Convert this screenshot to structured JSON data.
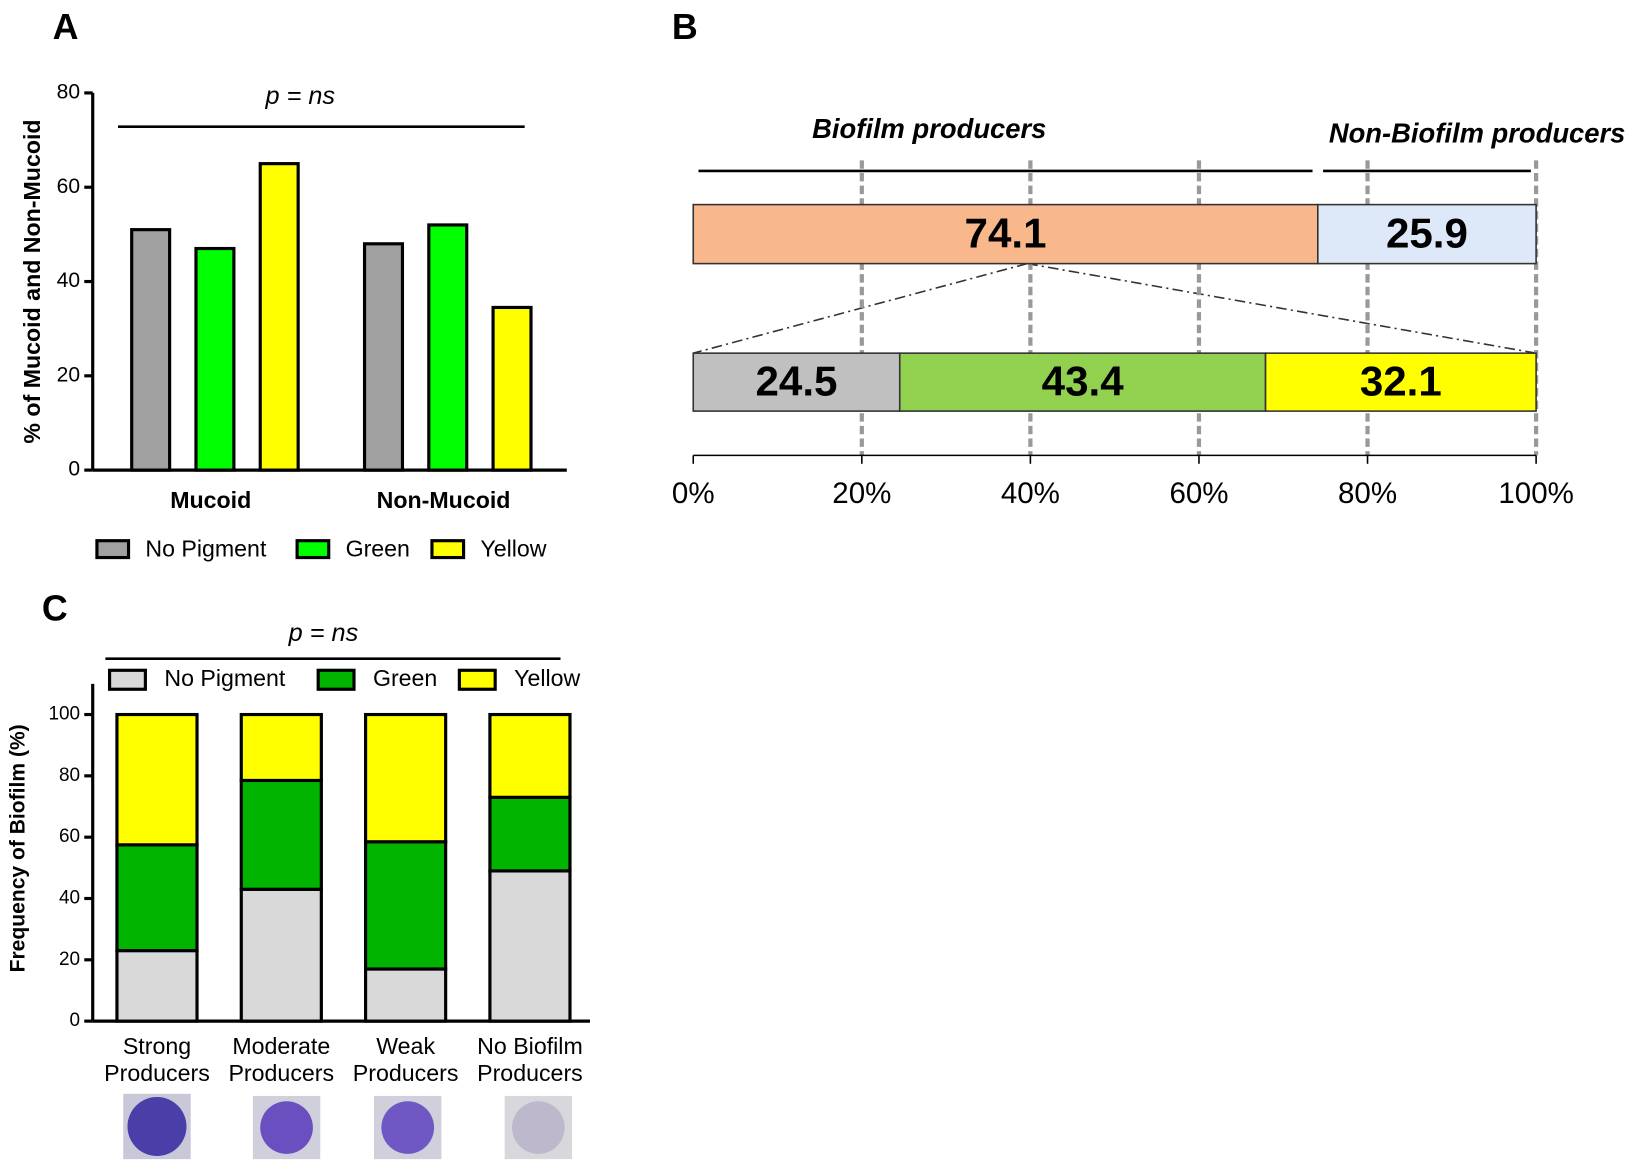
{
  "chart_data": [
    {
      "type": "grouped_bar",
      "panel": "A",
      "annotation": "p = ns",
      "y_label": "% of Mucoid and Non-Mucoid",
      "categories": [
        "Mucoid",
        "Non-Mucoid"
      ],
      "series": [
        {
          "name": "No Pigment",
          "color": "#a0a0a0",
          "values": [
            51,
            48
          ]
        },
        {
          "name": "Green",
          "color": "#00ff00",
          "values": [
            47,
            52
          ]
        },
        {
          "name": "Yellow",
          "color": "#ffff00",
          "values": [
            65,
            34.5
          ]
        }
      ],
      "ylim": [
        0,
        80
      ],
      "yticks": [
        0,
        20,
        40,
        60,
        80
      ]
    },
    {
      "type": "stacked_bar_h",
      "panel": "B",
      "groups": [
        "Biofilm producers",
        "Non-Biofilm producers"
      ],
      "bars": [
        {
          "values": [
            74.1,
            25.9
          ],
          "colors": [
            "#f8b88b",
            "#dde8f8"
          ]
        },
        {
          "values": [
            24.5,
            43.4,
            32.1
          ],
          "colors": [
            "#c0c0c0",
            "#92d050",
            "#ffff00"
          ]
        }
      ],
      "xlim": [
        0,
        100
      ],
      "xticks": [
        {
          "value": 0,
          "label": "0%"
        },
        {
          "value": 20,
          "label": "20%"
        },
        {
          "value": 40,
          "label": "40%"
        },
        {
          "value": 60,
          "label": "60%"
        },
        {
          "value": 80,
          "label": "80%"
        },
        {
          "value": 100,
          "label": "100%"
        }
      ],
      "grid": true
    },
    {
      "type": "stacked_bar",
      "panel": "C",
      "annotation": "p = ns",
      "y_label": "Frequency of Biofilm (%)",
      "categories": [
        "Strong\nProducers",
        "Moderate\nProducers",
        "Weak\nProducers",
        "No Biofilm\nProducers"
      ],
      "series": [
        {
          "name": "No Pigment",
          "color": "#d9d9d9",
          "values": [
            23,
            43,
            17,
            49
          ]
        },
        {
          "name": "Green",
          "color": "#00b400",
          "values": [
            34.5,
            35.5,
            41.5,
            24
          ]
        },
        {
          "name": "Yellow",
          "color": "#ffff00",
          "values": [
            42.5,
            21.5,
            41.5,
            27
          ]
        }
      ],
      "ylim": [
        0,
        110
      ],
      "yticks": [
        0,
        20,
        40,
        60,
        80,
        100
      ]
    }
  ]
}
